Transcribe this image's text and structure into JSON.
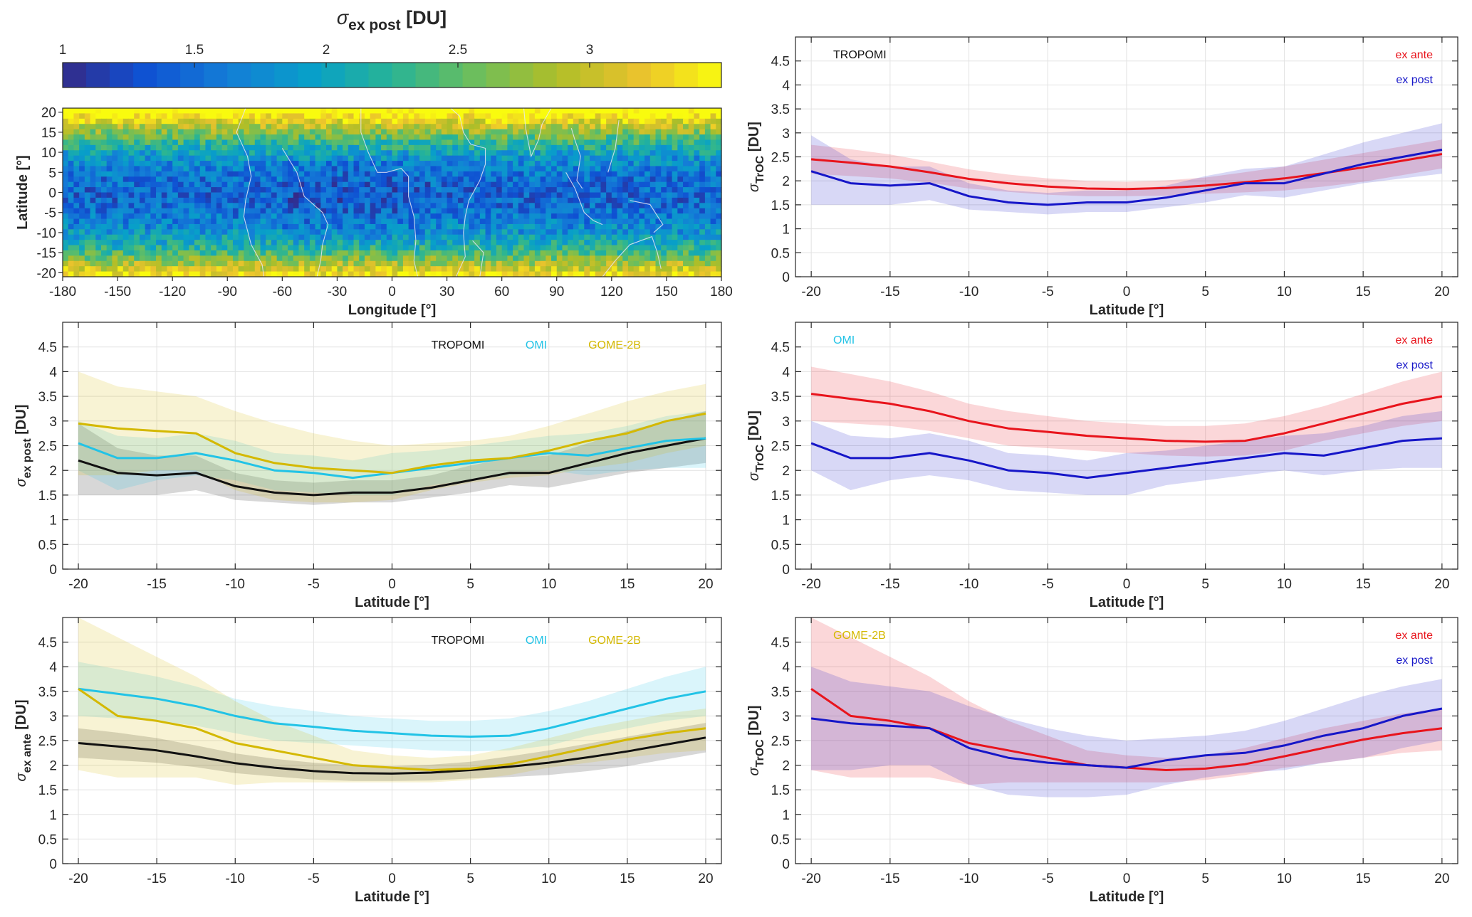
{
  "colors": {
    "tropomi": "#111111",
    "omi": "#22c3e6",
    "gome2b": "#d4b800",
    "ex_ante": "#e8141c",
    "ex_post": "#1616c8"
  },
  "colorbar": {
    "title_sym": "σ",
    "title_sub": "ex post",
    "title_unit": "[DU]",
    "tick_values": [
      1,
      1.5,
      2,
      2.5,
      3
    ],
    "range": [
      1,
      3.5
    ],
    "colormap": "parula"
  },
  "map": {
    "xlabel": "Longitude [°]",
    "ylabel": "Latitude [°]",
    "x_ticks": [
      -180,
      -150,
      -120,
      -90,
      -60,
      -30,
      0,
      30,
      60,
      90,
      120,
      150,
      180
    ],
    "y_ticks": [
      -20,
      -15,
      -10,
      -5,
      0,
      5,
      10,
      15,
      20
    ]
  },
  "chart_data": [
    {
      "id": "tropomi_comparison",
      "type": "line",
      "annotation": "TROPOMI",
      "xlabel": "Latitude [°]",
      "ylabel_sym": "σ",
      "ylabel_sub": "TrOC",
      "ylabel_unit": "[DU]",
      "xlim": [
        -21,
        21
      ],
      "ylim": [
        0,
        5
      ],
      "x_ticks": [
        -20,
        -15,
        -10,
        -5,
        0,
        5,
        10,
        15,
        20
      ],
      "y_ticks": [
        0,
        0.5,
        1,
        1.5,
        2,
        2.5,
        3,
        3.5,
        4,
        4.5
      ],
      "grid": true,
      "x": [
        -20,
        -17.5,
        -15,
        -12.5,
        -10,
        -7.5,
        -5,
        -2.5,
        0,
        2.5,
        5,
        7.5,
        10,
        12.5,
        15,
        17.5,
        20
      ],
      "series": [
        {
          "name": "ex ante",
          "color_key": "ex_ante",
          "values": [
            2.45,
            2.38,
            2.3,
            2.18,
            2.04,
            1.95,
            1.88,
            1.84,
            1.83,
            1.85,
            1.9,
            1.97,
            2.05,
            2.16,
            2.28,
            2.42,
            2.56
          ],
          "upper": [
            2.75,
            2.66,
            2.55,
            2.4,
            2.24,
            2.13,
            2.05,
            2.0,
            1.98,
            2.01,
            2.07,
            2.18,
            2.3,
            2.44,
            2.58,
            2.72,
            2.86
          ],
          "lower": [
            2.15,
            2.1,
            2.05,
            1.96,
            1.84,
            1.77,
            1.71,
            1.68,
            1.68,
            1.69,
            1.73,
            1.76,
            1.8,
            1.88,
            1.98,
            2.12,
            2.26
          ]
        },
        {
          "name": "ex post",
          "color_key": "ex_post",
          "values": [
            2.2,
            1.95,
            1.9,
            1.95,
            1.68,
            1.55,
            1.5,
            1.55,
            1.55,
            1.65,
            1.8,
            1.95,
            1.95,
            2.15,
            2.35,
            2.5,
            2.65
          ],
          "upper": [
            2.95,
            2.45,
            2.3,
            2.3,
            1.95,
            1.8,
            1.75,
            1.8,
            1.8,
            1.9,
            2.1,
            2.25,
            2.3,
            2.55,
            2.8,
            3.0,
            3.2
          ],
          "lower": [
            1.5,
            1.5,
            1.5,
            1.6,
            1.4,
            1.35,
            1.3,
            1.35,
            1.35,
            1.45,
            1.55,
            1.7,
            1.65,
            1.8,
            1.95,
            2.05,
            2.15
          ]
        }
      ]
    },
    {
      "id": "ex_post_all",
      "type": "line",
      "xlabel": "Latitude [°]",
      "ylabel_sym": "σ",
      "ylabel_sub": "ex post",
      "ylabel_unit": "[DU]",
      "xlim": [
        -21,
        21
      ],
      "ylim": [
        0,
        5
      ],
      "x_ticks": [
        -20,
        -15,
        -10,
        -5,
        0,
        5,
        10,
        15,
        20
      ],
      "y_ticks": [
        0,
        0.5,
        1,
        1.5,
        2,
        2.5,
        3,
        3.5,
        4,
        4.5
      ],
      "grid": true,
      "x": [
        -20,
        -17.5,
        -15,
        -12.5,
        -10,
        -7.5,
        -5,
        -2.5,
        0,
        2.5,
        5,
        7.5,
        10,
        12.5,
        15,
        17.5,
        20
      ],
      "series": [
        {
          "name": "TROPOMI",
          "color_key": "tropomi",
          "values": [
            2.2,
            1.95,
            1.9,
            1.95,
            1.68,
            1.55,
            1.5,
            1.55,
            1.55,
            1.65,
            1.8,
            1.95,
            1.95,
            2.15,
            2.35,
            2.5,
            2.65
          ],
          "upper": [
            2.95,
            2.45,
            2.3,
            2.3,
            1.95,
            1.8,
            1.75,
            1.8,
            1.8,
            1.9,
            2.1,
            2.25,
            2.3,
            2.55,
            2.8,
            3.0,
            3.2
          ],
          "lower": [
            1.5,
            1.5,
            1.5,
            1.6,
            1.4,
            1.35,
            1.3,
            1.35,
            1.35,
            1.45,
            1.55,
            1.7,
            1.65,
            1.8,
            1.95,
            2.05,
            2.15
          ]
        },
        {
          "name": "OMI",
          "color_key": "omi",
          "values": [
            2.55,
            2.25,
            2.25,
            2.35,
            2.2,
            2.0,
            1.95,
            1.85,
            1.95,
            2.05,
            2.15,
            2.25,
            2.35,
            2.3,
            2.45,
            2.6,
            2.65
          ],
          "upper": [
            3.0,
            2.7,
            2.65,
            2.75,
            2.6,
            2.35,
            2.3,
            2.2,
            2.35,
            2.4,
            2.5,
            2.6,
            2.7,
            2.75,
            2.9,
            3.1,
            3.2
          ],
          "lower": [
            2.0,
            1.6,
            1.8,
            1.9,
            1.8,
            1.6,
            1.55,
            1.5,
            1.5,
            1.7,
            1.8,
            1.9,
            2.0,
            1.9,
            2.0,
            2.05,
            2.05
          ]
        },
        {
          "name": "GOME-2B",
          "color_key": "gome2b",
          "values": [
            2.95,
            2.85,
            2.8,
            2.75,
            2.35,
            2.15,
            2.05,
            2.0,
            1.95,
            2.1,
            2.2,
            2.25,
            2.4,
            2.6,
            2.75,
            3.0,
            3.15
          ],
          "upper": [
            4.0,
            3.7,
            3.6,
            3.5,
            3.2,
            2.95,
            2.75,
            2.6,
            2.5,
            2.55,
            2.6,
            2.7,
            2.9,
            3.15,
            3.4,
            3.6,
            3.75
          ],
          "lower": [
            1.9,
            1.9,
            2.0,
            2.0,
            1.6,
            1.4,
            1.35,
            1.35,
            1.4,
            1.6,
            1.75,
            1.85,
            1.9,
            2.05,
            2.15,
            2.35,
            2.5
          ]
        }
      ]
    },
    {
      "id": "omi_comparison",
      "type": "line",
      "annotation": "OMI",
      "xlabel": "Latitude [°]",
      "ylabel_sym": "σ",
      "ylabel_sub": "TrOC",
      "ylabel_unit": "[DU]",
      "xlim": [
        -21,
        21
      ],
      "ylim": [
        0,
        5
      ],
      "x_ticks": [
        -20,
        -15,
        -10,
        -5,
        0,
        5,
        10,
        15,
        20
      ],
      "y_ticks": [
        0,
        0.5,
        1,
        1.5,
        2,
        2.5,
        3,
        3.5,
        4,
        4.5
      ],
      "grid": true,
      "x": [
        -20,
        -17.5,
        -15,
        -12.5,
        -10,
        -7.5,
        -5,
        -2.5,
        0,
        2.5,
        5,
        7.5,
        10,
        12.5,
        15,
        17.5,
        20
      ],
      "series": [
        {
          "name": "ex ante",
          "color_key": "ex_ante",
          "values": [
            3.55,
            3.45,
            3.35,
            3.2,
            3.0,
            2.85,
            2.78,
            2.7,
            2.65,
            2.6,
            2.58,
            2.6,
            2.75,
            2.95,
            3.15,
            3.35,
            3.5
          ],
          "upper": [
            4.1,
            3.95,
            3.8,
            3.6,
            3.35,
            3.2,
            3.1,
            3.0,
            2.95,
            2.9,
            2.9,
            2.95,
            3.1,
            3.3,
            3.55,
            3.8,
            4.0
          ],
          "lower": [
            3.0,
            2.95,
            2.9,
            2.8,
            2.65,
            2.5,
            2.45,
            2.4,
            2.35,
            2.3,
            2.28,
            2.3,
            2.4,
            2.6,
            2.75,
            2.9,
            3.0
          ]
        },
        {
          "name": "ex post",
          "color_key": "ex_post",
          "values": [
            2.55,
            2.25,
            2.25,
            2.35,
            2.2,
            2.0,
            1.95,
            1.85,
            1.95,
            2.05,
            2.15,
            2.25,
            2.35,
            2.3,
            2.45,
            2.6,
            2.65
          ],
          "upper": [
            3.0,
            2.7,
            2.65,
            2.75,
            2.6,
            2.35,
            2.3,
            2.2,
            2.35,
            2.4,
            2.5,
            2.6,
            2.7,
            2.75,
            2.9,
            3.1,
            3.2
          ],
          "lower": [
            2.0,
            1.6,
            1.8,
            1.9,
            1.8,
            1.6,
            1.55,
            1.5,
            1.5,
            1.7,
            1.8,
            1.9,
            2.0,
            1.9,
            2.0,
            2.05,
            2.05
          ]
        }
      ]
    },
    {
      "id": "ex_ante_all",
      "type": "line",
      "xlabel": "Latitude [°]",
      "ylabel_sym": "σ",
      "ylabel_sub": "ex ante",
      "ylabel_unit": "[DU]",
      "xlim": [
        -21,
        21
      ],
      "ylim": [
        0,
        5
      ],
      "x_ticks": [
        -20,
        -15,
        -10,
        -5,
        0,
        5,
        10,
        15,
        20
      ],
      "y_ticks": [
        0,
        0.5,
        1,
        1.5,
        2,
        2.5,
        3,
        3.5,
        4,
        4.5
      ],
      "grid": true,
      "x": [
        -20,
        -17.5,
        -15,
        -12.5,
        -10,
        -7.5,
        -5,
        -2.5,
        0,
        2.5,
        5,
        7.5,
        10,
        12.5,
        15,
        17.5,
        20
      ],
      "series": [
        {
          "name": "TROPOMI",
          "color_key": "tropomi",
          "values": [
            2.45,
            2.38,
            2.3,
            2.18,
            2.04,
            1.95,
            1.88,
            1.84,
            1.83,
            1.85,
            1.9,
            1.97,
            2.05,
            2.16,
            2.28,
            2.42,
            2.56
          ],
          "upper": [
            2.75,
            2.66,
            2.55,
            2.4,
            2.24,
            2.13,
            2.05,
            2.0,
            1.98,
            2.01,
            2.07,
            2.18,
            2.3,
            2.44,
            2.58,
            2.72,
            2.86
          ],
          "lower": [
            2.15,
            2.1,
            2.05,
            1.96,
            1.84,
            1.77,
            1.71,
            1.68,
            1.68,
            1.69,
            1.73,
            1.76,
            1.8,
            1.88,
            1.98,
            2.12,
            2.26
          ]
        },
        {
          "name": "OMI",
          "color_key": "omi",
          "values": [
            3.55,
            3.45,
            3.35,
            3.2,
            3.0,
            2.85,
            2.78,
            2.7,
            2.65,
            2.6,
            2.58,
            2.6,
            2.75,
            2.95,
            3.15,
            3.35,
            3.5
          ],
          "upper": [
            4.1,
            3.95,
            3.8,
            3.6,
            3.35,
            3.2,
            3.1,
            3.0,
            2.95,
            2.9,
            2.9,
            2.95,
            3.1,
            3.3,
            3.55,
            3.8,
            4.0
          ],
          "lower": [
            3.0,
            2.95,
            2.9,
            2.8,
            2.65,
            2.5,
            2.45,
            2.4,
            2.35,
            2.3,
            2.28,
            2.3,
            2.4,
            2.6,
            2.75,
            2.9,
            3.0
          ]
        },
        {
          "name": "GOME-2B",
          "color_key": "gome2b",
          "values": [
            3.55,
            3.0,
            2.9,
            2.75,
            2.45,
            2.3,
            2.15,
            2.0,
            1.95,
            1.9,
            1.93,
            2.02,
            2.18,
            2.35,
            2.52,
            2.65,
            2.75
          ],
          "upper": [
            5.0,
            4.6,
            4.2,
            3.8,
            3.3,
            2.9,
            2.6,
            2.3,
            2.2,
            2.15,
            2.2,
            2.35,
            2.55,
            2.75,
            2.9,
            3.05,
            3.15
          ],
          "lower": [
            1.9,
            1.75,
            1.75,
            1.75,
            1.6,
            1.65,
            1.65,
            1.65,
            1.65,
            1.65,
            1.7,
            1.8,
            1.95,
            2.05,
            2.15,
            2.25,
            2.3
          ]
        }
      ]
    },
    {
      "id": "gome2b_comparison",
      "type": "line",
      "annotation": "GOME-2B",
      "xlabel": "Latitude [°]",
      "ylabel_sym": "σ",
      "ylabel_sub": "TrOC",
      "ylabel_unit": "[DU]",
      "xlim": [
        -21,
        21
      ],
      "ylim": [
        0,
        5
      ],
      "x_ticks": [
        -20,
        -15,
        -10,
        -5,
        0,
        5,
        10,
        15,
        20
      ],
      "y_ticks": [
        0,
        0.5,
        1,
        1.5,
        2,
        2.5,
        3,
        3.5,
        4,
        4.5
      ],
      "grid": true,
      "x": [
        -20,
        -17.5,
        -15,
        -12.5,
        -10,
        -7.5,
        -5,
        -2.5,
        0,
        2.5,
        5,
        7.5,
        10,
        12.5,
        15,
        17.5,
        20
      ],
      "series": [
        {
          "name": "ex ante",
          "color_key": "ex_ante",
          "values": [
            3.55,
            3.0,
            2.9,
            2.75,
            2.45,
            2.3,
            2.15,
            2.0,
            1.95,
            1.9,
            1.93,
            2.02,
            2.18,
            2.35,
            2.52,
            2.65,
            2.75
          ],
          "upper": [
            5.0,
            4.6,
            4.2,
            3.8,
            3.3,
            2.9,
            2.6,
            2.3,
            2.2,
            2.15,
            2.2,
            2.35,
            2.55,
            2.75,
            2.9,
            3.05,
            3.15
          ],
          "lower": [
            1.9,
            1.75,
            1.75,
            1.75,
            1.6,
            1.65,
            1.65,
            1.65,
            1.65,
            1.65,
            1.7,
            1.8,
            1.95,
            2.05,
            2.15,
            2.25,
            2.3
          ]
        },
        {
          "name": "ex post",
          "color_key": "ex_post",
          "values": [
            2.95,
            2.85,
            2.8,
            2.75,
            2.35,
            2.15,
            2.05,
            2.0,
            1.95,
            2.1,
            2.2,
            2.25,
            2.4,
            2.6,
            2.75,
            3.0,
            3.15
          ],
          "upper": [
            4.0,
            3.7,
            3.6,
            3.5,
            3.2,
            2.95,
            2.75,
            2.6,
            2.5,
            2.55,
            2.6,
            2.7,
            2.9,
            3.15,
            3.4,
            3.6,
            3.75
          ],
          "lower": [
            1.9,
            1.9,
            2.0,
            2.0,
            1.6,
            1.4,
            1.35,
            1.35,
            1.4,
            1.6,
            1.75,
            1.85,
            1.9,
            2.05,
            2.15,
            2.35,
            2.5
          ]
        }
      ]
    }
  ]
}
